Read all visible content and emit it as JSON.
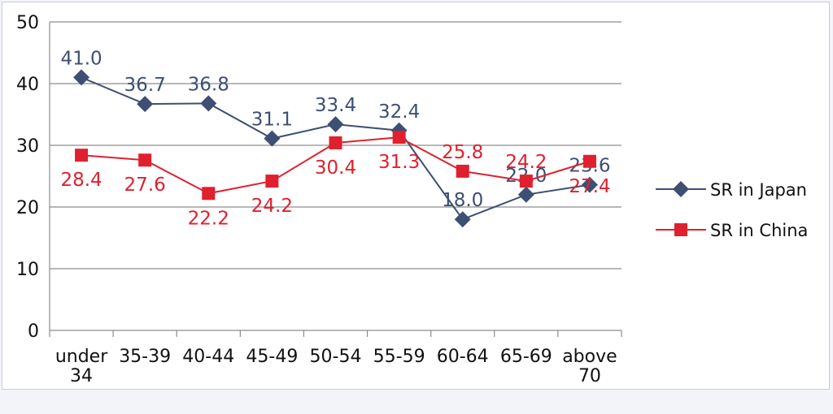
{
  "chart_data": {
    "type": "line",
    "categories": [
      [
        "under",
        "34"
      ],
      [
        "35-39"
      ],
      [
        "40-44"
      ],
      [
        "45-49"
      ],
      [
        "50-54"
      ],
      [
        "55-59"
      ],
      [
        "60-64"
      ],
      [
        "65-69"
      ],
      [
        "above",
        "70"
      ]
    ],
    "y_ticks": [
      "0",
      "10",
      "20",
      "30",
      "40",
      "50"
    ],
    "ylim": [
      0,
      50
    ],
    "grid": true,
    "legend_position": "right",
    "series": [
      {
        "name": "SR in Japan",
        "marker": "diamond",
        "color": "#3d4f73",
        "values": [
          41.0,
          36.7,
          36.8,
          31.1,
          33.4,
          32.4,
          18.0,
          22.0,
          23.6
        ],
        "labels": [
          "41.0",
          "36.7",
          "36.8",
          "31.1",
          "33.4",
          "32.4",
          "18.0",
          "22.0",
          "23.6"
        ]
      },
      {
        "name": "SR in China",
        "marker": "square",
        "color": "#e0202e",
        "values": [
          28.4,
          27.6,
          22.2,
          24.2,
          30.4,
          31.3,
          25.8,
          24.2,
          27.4
        ],
        "labels": [
          "28.4",
          "27.6",
          "22.2",
          "24.2",
          "30.4",
          "31.3",
          "25.8",
          "24.2",
          "27.4"
        ]
      }
    ]
  }
}
